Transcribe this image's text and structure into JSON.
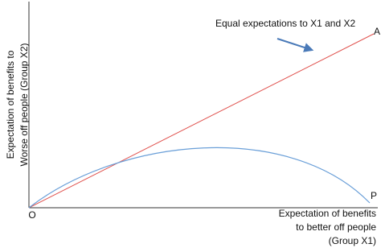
{
  "diagram": {
    "y_axis_label": [
      "Expectation of benefits to",
      "Worse off people (Group X2)"
    ],
    "x_axis_label": [
      "Expectation of benefits",
      "to better off people",
      "(Group X1)"
    ],
    "annotation": "Equal expectations to X1 and X2",
    "points": {
      "origin": "O",
      "a": "A",
      "p": "P"
    }
  }
}
